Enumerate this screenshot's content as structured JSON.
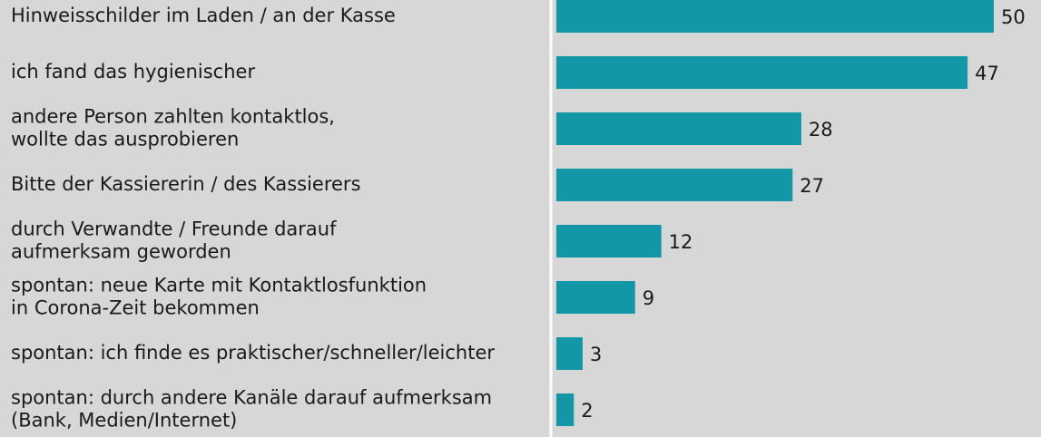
{
  "chart_data": {
    "type": "bar",
    "orientation": "horizontal",
    "categories": [
      [
        "Hinweisschilder im Laden / an der Kasse"
      ],
      [
        "ich fand das hygienischer"
      ],
      [
        "andere Person zahlten kontaktlos,",
        "wollte das ausprobieren"
      ],
      [
        "Bitte der Kassiererin / des Kassierers"
      ],
      [
        "durch Verwandte / Freunde darauf",
        "aufmerksam geworden"
      ],
      [
        "spontan: neue Karte mit Kontaktlosfunktion",
        "in Corona-Zeit bekommen"
      ],
      [
        "spontan: ich finde es praktischer/schneller/leichter"
      ],
      [
        "spontan: durch andere Kanäle darauf aufmerksam",
        "(Bank, Medien/Internet)"
      ]
    ],
    "values": [
      50,
      47,
      28,
      27,
      12,
      9,
      3,
      2
    ],
    "color": "#1297a6"
  }
}
